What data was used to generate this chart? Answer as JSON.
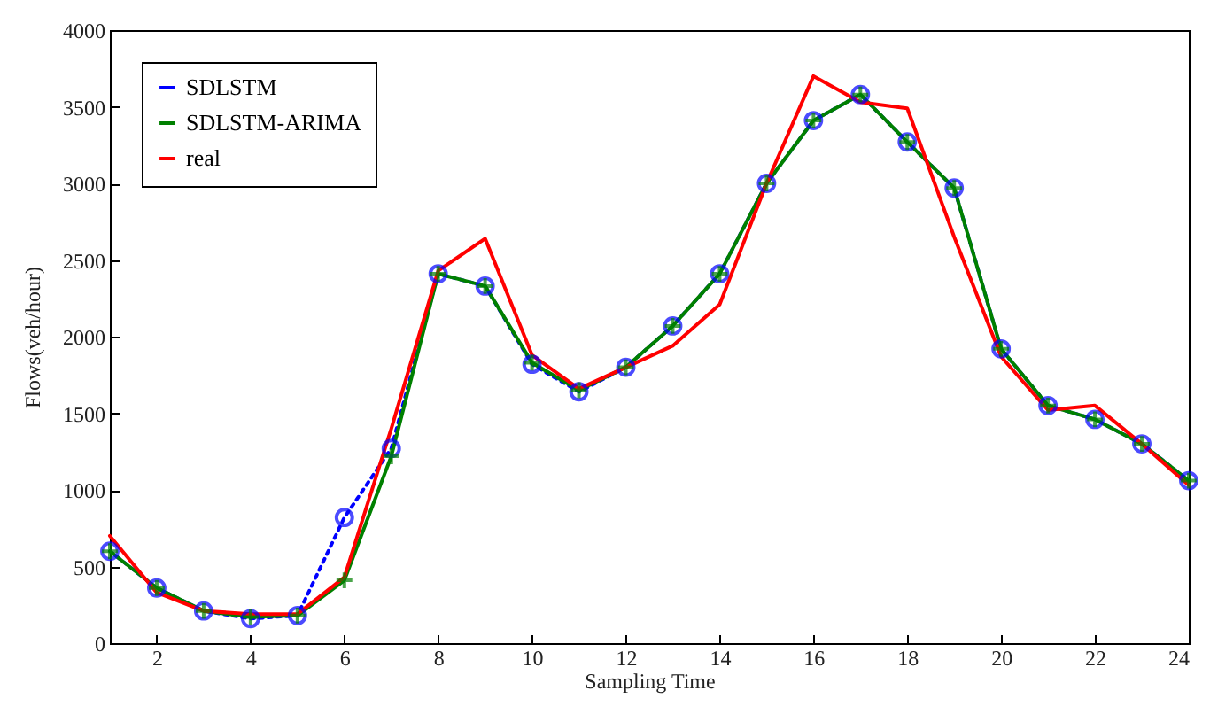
{
  "chart_data": {
    "type": "line",
    "xlabel": "Sampling Time",
    "ylabel": "Flows(veh/hour)",
    "x": [
      1,
      2,
      3,
      4,
      5,
      6,
      7,
      8,
      9,
      10,
      11,
      12,
      13,
      14,
      15,
      16,
      17,
      18,
      19,
      20,
      21,
      22,
      23,
      24
    ],
    "series": [
      {
        "name": "SDLSTM",
        "color": "#0000ff",
        "marker": "circle",
        "line_style": "dotted",
        "values": [
          600,
          360,
          210,
          160,
          180,
          820,
          1270,
          2410,
          2330,
          1820,
          1640,
          1800,
          2070,
          2410,
          3000,
          3410,
          3580,
          3270,
          2970,
          1920,
          1550,
          1460,
          1300,
          1060
        ]
      },
      {
        "name": "SDLSTM-ARIMA",
        "color": "#008000",
        "marker": "cross",
        "line_style": "solid",
        "values": [
          600,
          360,
          210,
          170,
          180,
          410,
          1220,
          2410,
          2330,
          1830,
          1650,
          1800,
          2070,
          2410,
          3000,
          3410,
          3580,
          3270,
          2970,
          1920,
          1550,
          1460,
          1300,
          1060
        ]
      },
      {
        "name": "real",
        "color": "#ff0000",
        "marker": "none",
        "line_style": "solid",
        "values": [
          700,
          330,
          210,
          190,
          190,
          430,
          1400,
          2430,
          2640,
          1880,
          1660,
          1800,
          1940,
          2210,
          3000,
          3700,
          3530,
          3490,
          2650,
          1870,
          1520,
          1550,
          1300,
          1030
        ]
      }
    ],
    "xlim": [
      1,
      24
    ],
    "xticks": [
      2,
      4,
      6,
      8,
      10,
      12,
      14,
      16,
      18,
      20,
      22,
      24
    ],
    "ylim": [
      0,
      4000
    ],
    "yticks": [
      0,
      500,
      1000,
      1500,
      2000,
      2500,
      3000,
      3500,
      4000
    ],
    "grid": false,
    "legend": "top left"
  }
}
